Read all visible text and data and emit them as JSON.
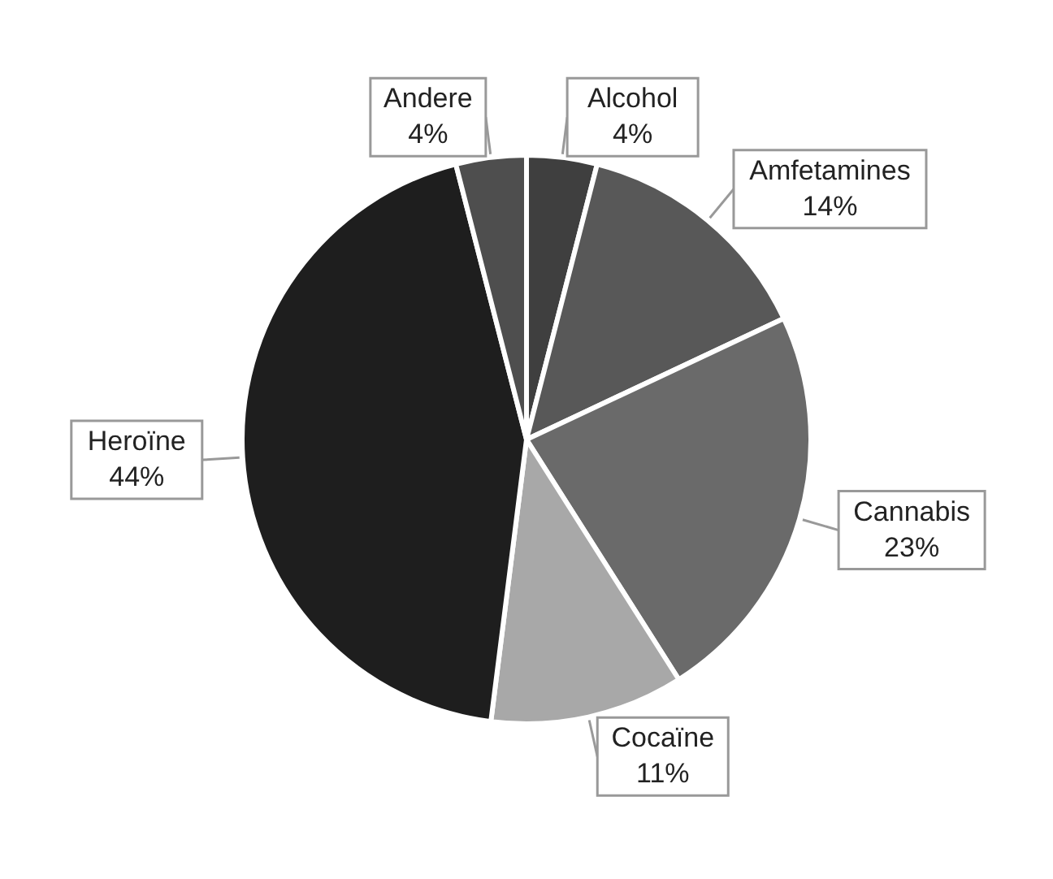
{
  "chart_data": {
    "type": "pie",
    "categories": [
      "Alcohol",
      "Amfetamines",
      "Cannabis",
      "Cocaïne",
      "Heroïne",
      "Andere"
    ],
    "values": [
      4,
      14,
      23,
      11,
      44,
      4
    ],
    "colors": [
      "#3f3f3f",
      "#585858",
      "#6a6a6a",
      "#a8a8a8",
      "#1e1e1e",
      "#4e4e4e"
    ],
    "value_labels": [
      "4%",
      "14%",
      "23%",
      "11%",
      "44%",
      "4%"
    ]
  }
}
